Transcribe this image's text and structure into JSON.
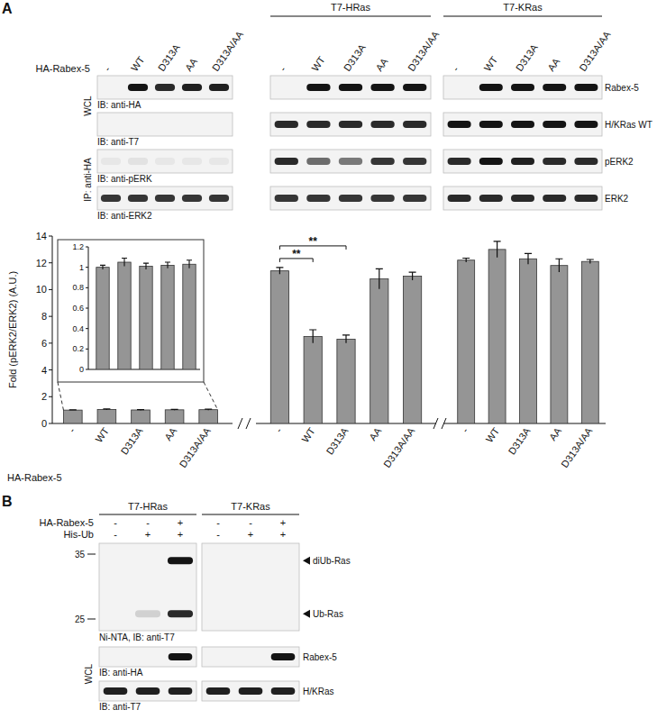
{
  "panel_a": {
    "letter": "A",
    "group_labels": [
      null,
      "T7-HRas",
      "T7-KRas"
    ],
    "row_label": "HA-Rabex-5",
    "lanes": [
      "-",
      "WT",
      "D313A",
      "AA",
      "D313A/AA",
      "-",
      "WT",
      "D313A",
      "AA",
      "D313A/AA",
      "-",
      "WT",
      "D313A",
      "AA",
      "D313A/AA"
    ],
    "side_labels": [
      {
        "text": "WCL",
        "rows": [
          0,
          1
        ]
      },
      {
        "text": "IP: anti-HA",
        "rows": [
          2,
          3
        ]
      }
    ],
    "blots": [
      {
        "caption": "IB: anti-HA",
        "name": "Rabex-5",
        "bands": [
          0,
          1,
          0.9,
          0.95,
          0.95,
          0,
          1,
          1,
          1,
          1,
          0,
          1,
          1,
          1,
          1
        ]
      },
      {
        "caption": "IB: anti-T7",
        "name": "H/KRas WT",
        "bands": [
          0,
          0,
          0,
          0,
          0,
          0.9,
          0.9,
          0.9,
          0.9,
          0.9,
          1,
          1,
          1,
          1,
          1
        ]
      },
      {
        "caption": "IB: anti-pERK",
        "name": "pERK2",
        "bands": [
          0.05,
          0.08,
          0.05,
          0.05,
          0.05,
          0.9,
          0.6,
          0.55,
          0.85,
          0.85,
          0.9,
          1,
          0.95,
          0.9,
          0.9
        ]
      },
      {
        "caption": "IB: anti-ERK2",
        "name": "ERK2",
        "bands": [
          0.85,
          0.85,
          0.85,
          0.85,
          0.85,
          0.85,
          0.85,
          0.85,
          0.85,
          0.85,
          0.9,
          0.9,
          0.9,
          0.9,
          0.9
        ]
      }
    ]
  },
  "chart_data": [
    {
      "type": "bar",
      "y_label": "Fold (pERK2/ERK2) (A.U.)",
      "x_label": "HA-Rabex-5",
      "categories": [
        "-",
        "WT",
        "D313A",
        "AA",
        "D313A/AA",
        "-",
        "WT",
        "D313A",
        "AA",
        "D313A/AA",
        "-",
        "WT",
        "D313A",
        "AA",
        "D313A/AA"
      ],
      "values": [
        1.0,
        1.05,
        1.01,
        1.02,
        1.03,
        11.4,
        6.5,
        6.3,
        10.8,
        11.0,
        12.2,
        13.0,
        12.3,
        11.8,
        12.1
      ],
      "errors": [
        0.02,
        0.04,
        0.03,
        0.03,
        0.04,
        0.25,
        0.5,
        0.3,
        0.75,
        0.3,
        0.15,
        0.6,
        0.4,
        0.5,
        0.15
      ],
      "color": "#959595",
      "ylim": [
        0,
        14
      ],
      "yticks": [
        0,
        2,
        4,
        6,
        8,
        10,
        12,
        14
      ],
      "annotations": [
        {
          "text": "**",
          "from": 5,
          "to": 6
        },
        {
          "text": "**",
          "from": 5,
          "to": 7
        }
      ]
    },
    {
      "type": "bar",
      "categories": [
        null,
        null,
        null,
        null,
        null
      ],
      "values": [
        1.0,
        1.05,
        1.01,
        1.02,
        1.03
      ],
      "errors": [
        0.02,
        0.04,
        0.03,
        0.03,
        0.04
      ],
      "color": "#959595",
      "ylim": [
        0,
        1.2
      ],
      "yticks": [
        0,
        0.2,
        0.4,
        0.6,
        0.8,
        1,
        1.2
      ],
      "tick_labels": "y"
    }
  ],
  "panel_b": {
    "letter": "B",
    "group_labels": [
      "T7-HRas",
      "T7-KRas"
    ],
    "conditions": [
      {
        "label": "HA-Rabex-5",
        "values": [
          "-",
          "-",
          "+",
          "-",
          "-",
          "+"
        ]
      },
      {
        "label": "His-Ub",
        "values": [
          "-",
          "+",
          "+",
          "-",
          "+",
          "+"
        ]
      }
    ],
    "pulldown": {
      "caption": "Ni-NTA, IB: anti-T7",
      "markers": [
        35,
        25
      ],
      "bands": [
        {
          "label": "diUb-Ras",
          "kda": 34,
          "intensity": [
            0,
            0,
            1,
            0,
            0,
            0
          ]
        },
        {
          "label": "Ub-Ras",
          "kda": 25.8,
          "intensity": [
            0,
            0.15,
            0.9,
            0,
            0,
            0
          ]
        }
      ]
    },
    "side_label": "WCL",
    "blots": [
      {
        "caption": "IB: anti-HA",
        "name": "Rabex-5",
        "bands": [
          0,
          0,
          1,
          0,
          0,
          1
        ]
      },
      {
        "caption": "IB: anti-T7",
        "name": "H/KRas",
        "bands": [
          0.95,
          0.95,
          0.95,
          0.95,
          0.95,
          0.95
        ]
      }
    ]
  }
}
